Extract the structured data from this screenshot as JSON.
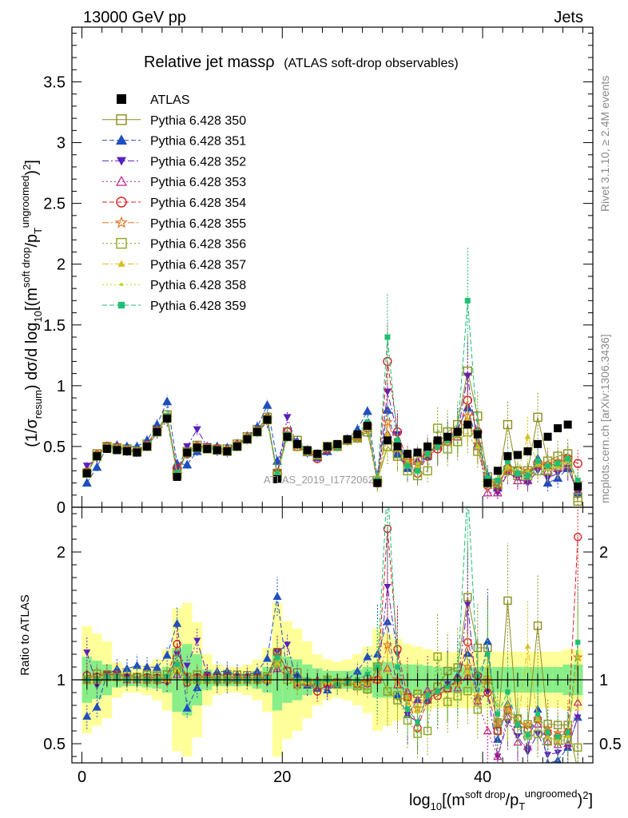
{
  "header": {
    "left": "13000 GeV pp",
    "right": "Jets"
  },
  "side_labels": {
    "rivet": "Rivet 3.1.10, ≥ 2.4M events",
    "mcplots": "mcplots.cern.ch [arXiv:1306.3436]"
  },
  "watermark": "ATLAS_2019_I1772062",
  "chart_data": [
    {
      "type": "line",
      "title": "Relative jet massρ",
      "subtitle": "(ATLAS soft-drop observables)",
      "ylabel": "(1/σ_resum) dσ/d log10[(m^soft drop/p_T^ungroomed)^2]",
      "xlabel": "log10[(m^soft drop/p_T^ungroomed)^2]",
      "xlim": [
        -1,
        51
      ],
      "ylim": [
        0,
        3.95
      ],
      "x_ticks": [
        0,
        20,
        40
      ],
      "y_ticks": [
        0,
        0.5,
        1,
        1.5,
        2,
        2.5,
        3,
        3.5
      ],
      "y_tick_labels": [
        "0",
        "0.5",
        "1",
        "1.5",
        "2",
        "2.5",
        "3",
        "3.5"
      ],
      "legend_placement": "top-left",
      "x": [
        0.5,
        1.5,
        2.5,
        3.5,
        4.5,
        5.5,
        6.5,
        7.5,
        8.5,
        9.5,
        10.5,
        11.5,
        12.5,
        13.5,
        14.5,
        15.5,
        16.5,
        17.5,
        18.5,
        19.5,
        20.5,
        21.5,
        22.5,
        23.5,
        24.5,
        25.5,
        26.5,
        27.5,
        28.5,
        29.5,
        30.5,
        31.5,
        32.5,
        33.5,
        34.5,
        35.5,
        36.5,
        37.5,
        38.5,
        39.5,
        40.5,
        41.5,
        42.5,
        43.5,
        44.5,
        45.5,
        46.5,
        47.5,
        48.5,
        49.5
      ],
      "series": [
        {
          "name": "ATLAS",
          "color": "#000000",
          "marker": "filled-square",
          "line": "none",
          "values": [
            0.28,
            0.42,
            0.48,
            0.47,
            0.46,
            0.45,
            0.5,
            0.62,
            0.73,
            0.25,
            0.45,
            0.49,
            0.48,
            0.47,
            0.46,
            0.5,
            0.56,
            0.62,
            0.72,
            0.23,
            0.58,
            0.52,
            0.47,
            0.44,
            0.5,
            0.52,
            0.56,
            0.6,
            0.67,
            0.2,
            0.55,
            0.5,
            0.44,
            0.45,
            0.5,
            0.55,
            0.58,
            0.62,
            0.68,
            0.6,
            0.2,
            0.3,
            0.42,
            0.43,
            0.46,
            0.52,
            0.58,
            0.65,
            0.68,
            0.17
          ]
        },
        {
          "name": "Pythia 6.428 350",
          "color": "#8c8c1f",
          "marker": "open-square",
          "line": "solid",
          "values": [
            0.28,
            0.44,
            0.5,
            0.49,
            0.48,
            0.46,
            0.52,
            0.64,
            0.76,
            0.29,
            0.46,
            0.51,
            0.49,
            0.48,
            0.48,
            0.52,
            0.58,
            0.64,
            0.74,
            0.28,
            0.62,
            0.55,
            0.46,
            0.42,
            0.5,
            0.51,
            0.55,
            0.57,
            0.62,
            0.22,
            0.5,
            0.42,
            0.38,
            0.4,
            0.44,
            0.52,
            0.62,
            0.68,
            1.12,
            0.75,
            0.25,
            0.18,
            0.68,
            0.26,
            0.3,
            0.74,
            0.38,
            0.42,
            0.44,
            0.05
          ]
        },
        {
          "name": "Pythia 6.428 351",
          "color": "#1f4fbf",
          "marker": "filled-triangle-up",
          "line": "dashed",
          "values": [
            0.2,
            0.33,
            0.5,
            0.51,
            0.5,
            0.5,
            0.55,
            0.68,
            0.87,
            0.36,
            0.35,
            0.46,
            0.5,
            0.5,
            0.49,
            0.52,
            0.58,
            0.66,
            0.84,
            0.38,
            0.6,
            0.54,
            0.45,
            0.41,
            0.46,
            0.5,
            0.56,
            0.64,
            0.79,
            0.24,
            0.8,
            0.44,
            0.32,
            0.38,
            0.42,
            0.5,
            0.56,
            0.64,
            0.82,
            0.52,
            0.26,
            0.16,
            0.34,
            0.28,
            0.22,
            0.4,
            0.2,
            0.24,
            0.32,
            0.12
          ]
        },
        {
          "name": "Pythia 6.428 352",
          "color": "#5a1fbf",
          "marker": "filled-triangle-down",
          "line": "dashdot",
          "values": [
            0.34,
            0.4,
            0.5,
            0.49,
            0.47,
            0.45,
            0.5,
            0.61,
            0.71,
            0.3,
            0.5,
            0.64,
            0.5,
            0.46,
            0.45,
            0.5,
            0.56,
            0.62,
            0.7,
            0.28,
            0.74,
            0.5,
            0.45,
            0.42,
            0.47,
            0.5,
            0.55,
            0.58,
            0.64,
            0.2,
            0.95,
            0.6,
            0.32,
            0.3,
            0.44,
            0.5,
            0.56,
            0.6,
            1.08,
            0.5,
            0.18,
            0.12,
            0.28,
            0.24,
            0.2,
            0.3,
            0.24,
            0.28,
            0.32,
            0.12
          ]
        },
        {
          "name": "Pythia 6.428 353",
          "color": "#bf1f8c",
          "marker": "open-triangle-up",
          "line": "dotted",
          "values": [
            0.28,
            0.42,
            0.49,
            0.48,
            0.46,
            0.45,
            0.5,
            0.62,
            0.73,
            0.26,
            0.46,
            0.5,
            0.49,
            0.47,
            0.46,
            0.5,
            0.56,
            0.62,
            0.72,
            0.25,
            0.6,
            0.52,
            0.47,
            0.44,
            0.5,
            0.51,
            0.55,
            0.58,
            0.65,
            0.2,
            0.6,
            0.48,
            0.4,
            0.38,
            0.46,
            0.5,
            0.54,
            0.58,
            0.7,
            0.5,
            0.12,
            0.12,
            0.3,
            0.22,
            0.22,
            0.34,
            0.3,
            0.32,
            0.34,
            0.14
          ]
        },
        {
          "name": "Pythia 6.428 354",
          "color": "#d91f1f",
          "marker": "open-circle",
          "line": "dashed",
          "values": [
            0.29,
            0.43,
            0.5,
            0.49,
            0.47,
            0.46,
            0.51,
            0.63,
            0.74,
            0.32,
            0.44,
            0.5,
            0.49,
            0.48,
            0.47,
            0.51,
            0.57,
            0.63,
            0.73,
            0.28,
            0.62,
            0.5,
            0.46,
            0.4,
            0.48,
            0.5,
            0.55,
            0.58,
            0.68,
            0.2,
            1.2,
            0.62,
            0.38,
            0.28,
            0.42,
            0.48,
            0.54,
            0.62,
            0.88,
            0.62,
            0.18,
            0.18,
            0.32,
            0.3,
            0.28,
            0.36,
            0.34,
            0.36,
            0.4,
            0.36
          ]
        },
        {
          "name": "Pythia 6.428 355",
          "color": "#e6731f",
          "marker": "open-star",
          "line": "dashdot",
          "values": [
            0.28,
            0.42,
            0.49,
            0.48,
            0.46,
            0.45,
            0.5,
            0.62,
            0.73,
            0.27,
            0.45,
            0.49,
            0.48,
            0.47,
            0.46,
            0.5,
            0.56,
            0.62,
            0.72,
            0.26,
            0.6,
            0.51,
            0.47,
            0.43,
            0.49,
            0.51,
            0.55,
            0.59,
            0.66,
            0.2,
            0.7,
            0.5,
            0.38,
            0.35,
            0.44,
            0.5,
            0.55,
            0.6,
            0.75,
            0.52,
            0.2,
            0.2,
            0.32,
            0.28,
            0.3,
            0.36,
            0.36,
            0.38,
            0.4,
            0.2
          ]
        },
        {
          "name": "Pythia 6.428 356",
          "color": "#8ca51f",
          "marker": "open-square",
          "line": "dotted",
          "values": [
            0.28,
            0.42,
            0.49,
            0.48,
            0.47,
            0.46,
            0.5,
            0.62,
            0.74,
            0.27,
            0.45,
            0.49,
            0.48,
            0.47,
            0.46,
            0.5,
            0.56,
            0.62,
            0.72,
            0.26,
            0.58,
            0.5,
            0.46,
            0.43,
            0.5,
            0.5,
            0.55,
            0.58,
            0.64,
            0.22,
            0.5,
            0.44,
            0.3,
            0.26,
            0.3,
            0.65,
            0.48,
            0.54,
            0.62,
            0.46,
            0.2,
            0.2,
            0.3,
            0.3,
            0.26,
            0.3,
            0.3,
            0.34,
            0.36,
            0.08
          ]
        },
        {
          "name": "Pythia 6.428 357",
          "color": "#d9bf1f",
          "marker": "filled-triangle-small",
          "line": "dashdot",
          "values": [
            0.28,
            0.42,
            0.49,
            0.48,
            0.46,
            0.45,
            0.5,
            0.62,
            0.73,
            0.27,
            0.45,
            0.49,
            0.48,
            0.47,
            0.46,
            0.5,
            0.56,
            0.62,
            0.72,
            0.26,
            0.6,
            0.51,
            0.46,
            0.43,
            0.49,
            0.51,
            0.55,
            0.58,
            0.65,
            0.2,
            0.6,
            0.48,
            0.36,
            0.34,
            0.44,
            0.5,
            0.55,
            0.6,
            0.72,
            0.5,
            0.22,
            0.22,
            0.34,
            0.28,
            0.58,
            0.36,
            0.32,
            0.34,
            0.38,
            0.2
          ]
        },
        {
          "name": "Pythia 6.428 358",
          "color": "#bfd91f",
          "marker": "dot",
          "line": "dotted",
          "values": [
            0.28,
            0.42,
            0.49,
            0.48,
            0.46,
            0.45,
            0.5,
            0.62,
            0.73,
            0.27,
            0.45,
            0.49,
            0.48,
            0.47,
            0.46,
            0.5,
            0.56,
            0.62,
            0.72,
            0.26,
            0.6,
            0.51,
            0.46,
            0.43,
            0.49,
            0.51,
            0.55,
            0.58,
            0.65,
            0.2,
            0.58,
            0.48,
            0.38,
            0.36,
            0.44,
            0.5,
            0.54,
            0.6,
            0.7,
            0.5,
            0.22,
            0.24,
            0.32,
            0.3,
            0.3,
            0.36,
            0.34,
            0.36,
            0.38,
            0.2
          ]
        },
        {
          "name": "Pythia 6.428 359",
          "color": "#1fbf73",
          "marker": "filled-square-small",
          "line": "dashed",
          "values": [
            0.28,
            0.42,
            0.49,
            0.48,
            0.46,
            0.45,
            0.5,
            0.62,
            0.75,
            0.28,
            0.45,
            0.49,
            0.48,
            0.47,
            0.46,
            0.5,
            0.56,
            0.62,
            0.73,
            0.27,
            0.6,
            0.52,
            0.47,
            0.43,
            0.5,
            0.5,
            0.55,
            0.6,
            0.7,
            0.22,
            1.4,
            0.55,
            0.34,
            0.3,
            0.44,
            0.5,
            0.55,
            0.62,
            1.7,
            0.62,
            0.24,
            0.22,
            0.38,
            0.28,
            0.26,
            0.38,
            0.34,
            0.36,
            0.4,
            0.22
          ]
        }
      ]
    },
    {
      "type": "line",
      "ylabel": "Ratio to ATLAS",
      "ylim": [
        0.35,
        2.35
      ],
      "x_ticks": [
        0,
        20,
        40
      ],
      "y_ticks": [
        0.5,
        1,
        2
      ],
      "y_tick_labels": [
        "0.5",
        "1",
        "2"
      ],
      "bands": {
        "outer_color": "#ffff99",
        "inner_color": "#88ee88",
        "outer_halfwidth": [
          0.42,
          0.36,
          0.3,
          0.14,
          0.1,
          0.1,
          0.12,
          0.16,
          0.24,
          0.56,
          0.6,
          0.45,
          0.2,
          0.12,
          0.1,
          0.1,
          0.12,
          0.16,
          0.25,
          0.6,
          0.46,
          0.4,
          0.3,
          0.2,
          0.16,
          0.14,
          0.16,
          0.2,
          0.26,
          0.4,
          0.36,
          0.32,
          0.28,
          0.26,
          0.24,
          0.22,
          0.22,
          0.22,
          0.22,
          0.22,
          0.22,
          0.22,
          0.22,
          0.22,
          0.22,
          0.22,
          0.22,
          0.22,
          0.24,
          0.24
        ],
        "inner_halfwidth": [
          0.18,
          0.15,
          0.12,
          0.06,
          0.05,
          0.05,
          0.06,
          0.07,
          0.1,
          0.25,
          0.28,
          0.2,
          0.08,
          0.05,
          0.05,
          0.05,
          0.05,
          0.07,
          0.1,
          0.24,
          0.18,
          0.16,
          0.12,
          0.09,
          0.07,
          0.07,
          0.07,
          0.08,
          0.1,
          0.14,
          0.14,
          0.13,
          0.12,
          0.12,
          0.11,
          0.1,
          0.1,
          0.1,
          0.1,
          0.1,
          0.1,
          0.1,
          0.1,
          0.1,
          0.1,
          0.1,
          0.1,
          0.1,
          0.12,
          0.12
        ]
      },
      "reference_line": 1
    }
  ]
}
